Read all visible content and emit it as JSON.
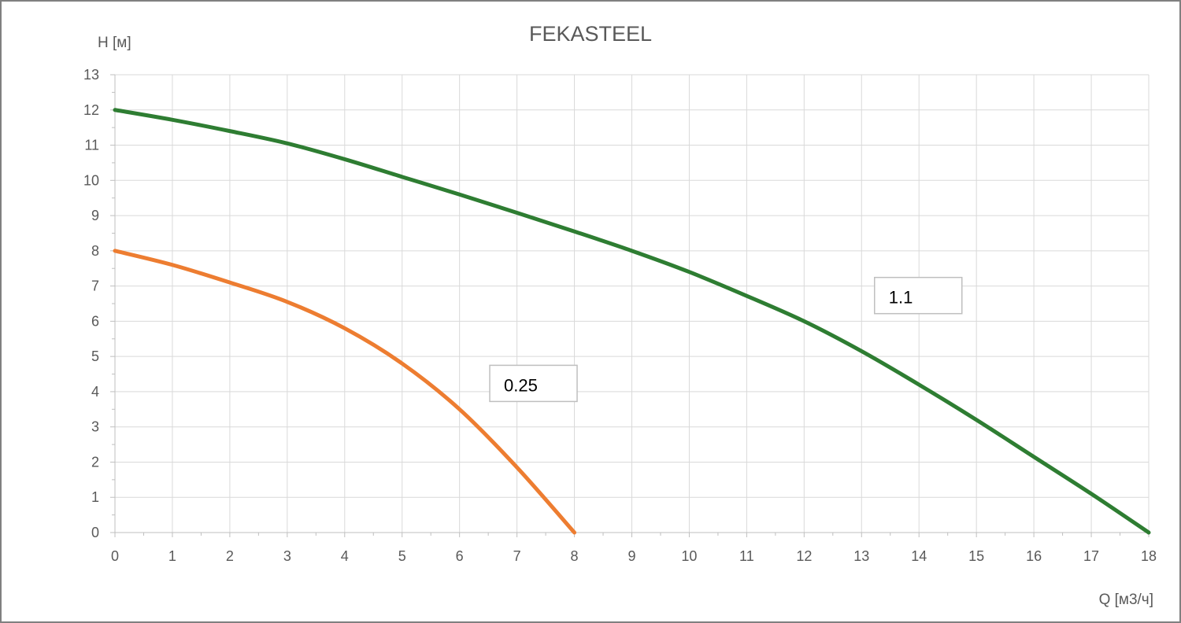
{
  "chart_data": {
    "type": "line",
    "title": "FEKASTEEL",
    "xlabel": "Q [м3/ч]",
    "ylabel": "H [м]",
    "xlim": [
      0,
      18
    ],
    "ylim": [
      0,
      13
    ],
    "x_ticks": [
      "0",
      "1",
      "2",
      "3",
      "4",
      "5",
      "6",
      "7",
      "8",
      "9",
      "10",
      "11",
      "12",
      "13",
      "14",
      "15",
      "16",
      "17",
      "18"
    ],
    "y_ticks": [
      "0",
      "1",
      "2",
      "3",
      "4",
      "5",
      "6",
      "7",
      "8",
      "9",
      "10",
      "11",
      "12",
      "13"
    ],
    "grid": true,
    "legend": "none",
    "series": [
      {
        "name": "0.25",
        "color": "#ED7D31",
        "points": [
          [
            0,
            8
          ],
          [
            1,
            7.6
          ],
          [
            2,
            7.1
          ],
          [
            3,
            6.55
          ],
          [
            4,
            5.8
          ],
          [
            5,
            4.8
          ],
          [
            6,
            3.5
          ],
          [
            7,
            1.85
          ],
          [
            8,
            0
          ]
        ]
      },
      {
        "name": "1.1",
        "color": "#2E7D32",
        "points": [
          [
            0,
            12
          ],
          [
            1,
            11.72
          ],
          [
            2,
            11.4
          ],
          [
            3,
            11.05
          ],
          [
            4,
            10.6
          ],
          [
            5,
            10.1
          ],
          [
            6,
            9.6
          ],
          [
            7,
            9.08
          ],
          [
            8,
            8.55
          ],
          [
            9,
            8.0
          ],
          [
            10,
            7.4
          ],
          [
            11,
            6.72
          ],
          [
            12,
            6.0
          ],
          [
            13,
            5.15
          ],
          [
            14,
            4.2
          ],
          [
            15,
            3.2
          ],
          [
            16,
            2.15
          ],
          [
            17,
            1.1
          ],
          [
            18,
            0
          ]
        ]
      }
    ]
  }
}
